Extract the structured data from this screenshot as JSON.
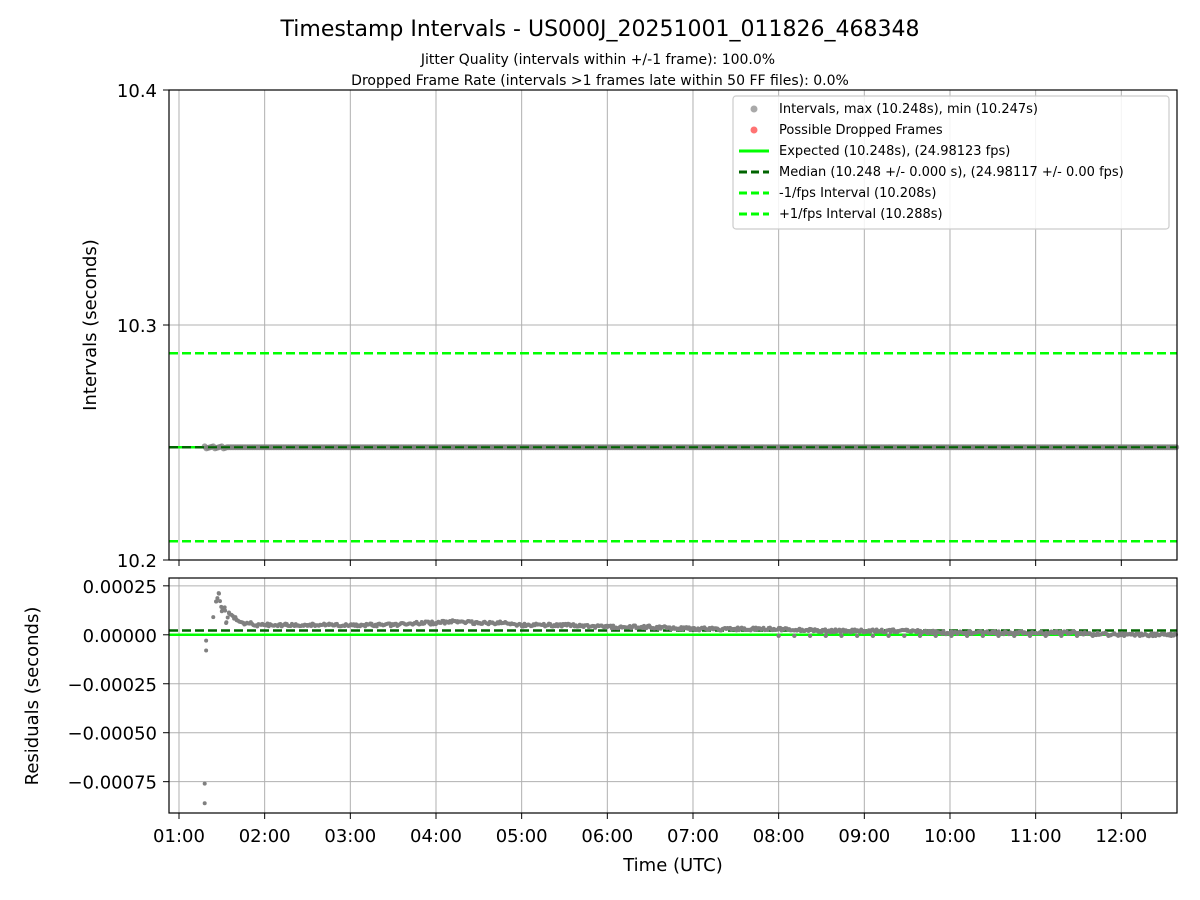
{
  "title": "Timestamp Intervals - US000J_20251001_011826_468348",
  "subtitle_1": "Jitter Quality (intervals within +/-1 frame): 100.0%",
  "subtitle_2": "Dropped Frame Rate (intervals >1 frames late within 50 FF files): 0.0%",
  "colors": {
    "points": "#808080",
    "points_legend": "#a9a9a9",
    "dropped": "#ff0000",
    "expected": "#00ff00",
    "median": "#006400",
    "interval_lines": "#00ff00",
    "grid": "#b0b0b0"
  },
  "chart_data": [
    {
      "type": "scatter",
      "ylabel": "Intervals (seconds)",
      "xlabel": "",
      "grid": true,
      "legend_position": "top-right",
      "xlim": [
        "00:53",
        "12:39"
      ],
      "ylim": [
        10.2,
        10.4
      ],
      "yticks": [
        "10.2",
        "10.3",
        "10.4"
      ],
      "lines": [
        {
          "name": "Expected (10.248s), (24.98123 fps)",
          "y": 10.248,
          "style": "solid",
          "color": "#00ff00"
        },
        {
          "name": "Median (10.248 +/- 0.000 s), (24.98117 +/- 0.00 fps)",
          "y": 10.248,
          "style": "dashed",
          "color": "#006400"
        },
        {
          "name": "-1/fps Interval (10.208s)",
          "y": 10.208,
          "style": "dashed",
          "color": "#00ff00"
        },
        {
          "name": "+1/fps Interval (10.288s)",
          "y": 10.288,
          "style": "dashed",
          "color": "#00ff00"
        }
      ],
      "series": [
        {
          "name": "Intervals, max (10.248s), min (10.247s)",
          "marker": "dot",
          "x_range": [
            "01:18",
            "12:39"
          ],
          "y": 10.248
        },
        {
          "name": "Possible Dropped Frames",
          "marker": "dot",
          "values": []
        }
      ]
    },
    {
      "type": "scatter",
      "ylabel": "Residuals (seconds)",
      "xlabel": "Time (UTC)",
      "grid": true,
      "xlim": [
        "00:53",
        "12:39"
      ],
      "ylim": [
        -0.00091,
        0.00029
      ],
      "yticks": [
        "0.00025",
        "0.00000",
        "−0.00025",
        "−0.00050",
        "−0.00075"
      ],
      "xticks": [
        "01:00",
        "02:00",
        "03:00",
        "04:00",
        "05:00",
        "06:00",
        "07:00",
        "08:00",
        "09:00",
        "10:00",
        "11:00",
        "12:00"
      ],
      "lines": [
        {
          "name": "Expected",
          "y": 0.0,
          "style": "solid",
          "color": "#00ff00"
        },
        {
          "name": "Median",
          "y": 2.2e-05,
          "style": "dashed",
          "color": "#006400"
        }
      ],
      "series": [
        {
          "name": "Residuals",
          "x": [
            "01:18",
            "01:18",
            "01:19",
            "01:19",
            "01:24",
            "01:26",
            "01:28",
            "01:30",
            "01:32",
            "01:33",
            "01:35",
            "01:40",
            "01:45",
            "01:50",
            "01:55",
            "02:00",
            "02:15",
            "02:30",
            "02:45",
            "03:00",
            "03:15",
            "03:30",
            "03:45",
            "04:00",
            "04:15",
            "04:30",
            "04:45",
            "05:00",
            "05:30",
            "06:00",
            "06:30",
            "07:00",
            "07:30",
            "08:00",
            "08:30",
            "09:00",
            "09:30",
            "10:00",
            "10:30",
            "11:00",
            "11:30",
            "12:00",
            "12:30"
          ],
          "y": [
            -0.00086,
            -0.00076,
            -8e-05,
            -3e-05,
            9e-05,
            0.00017,
            0.00021,
            0.00012,
            0.00014,
            6e-05,
            0.00011,
            8e-05,
            6e-05,
            6e-05,
            5e-05,
            5e-05,
            5e-05,
            5e-05,
            5e-05,
            5e-05,
            5e-05,
            5e-05,
            6e-05,
            6e-05,
            7e-05,
            6e-05,
            6e-05,
            5e-05,
            5e-05,
            4e-05,
            4e-05,
            3e-05,
            3e-05,
            3e-05,
            2e-05,
            2e-05,
            2e-05,
            1e-05,
            1e-05,
            1e-05,
            1e-05,
            0.0,
            0.0
          ]
        }
      ]
    }
  ]
}
